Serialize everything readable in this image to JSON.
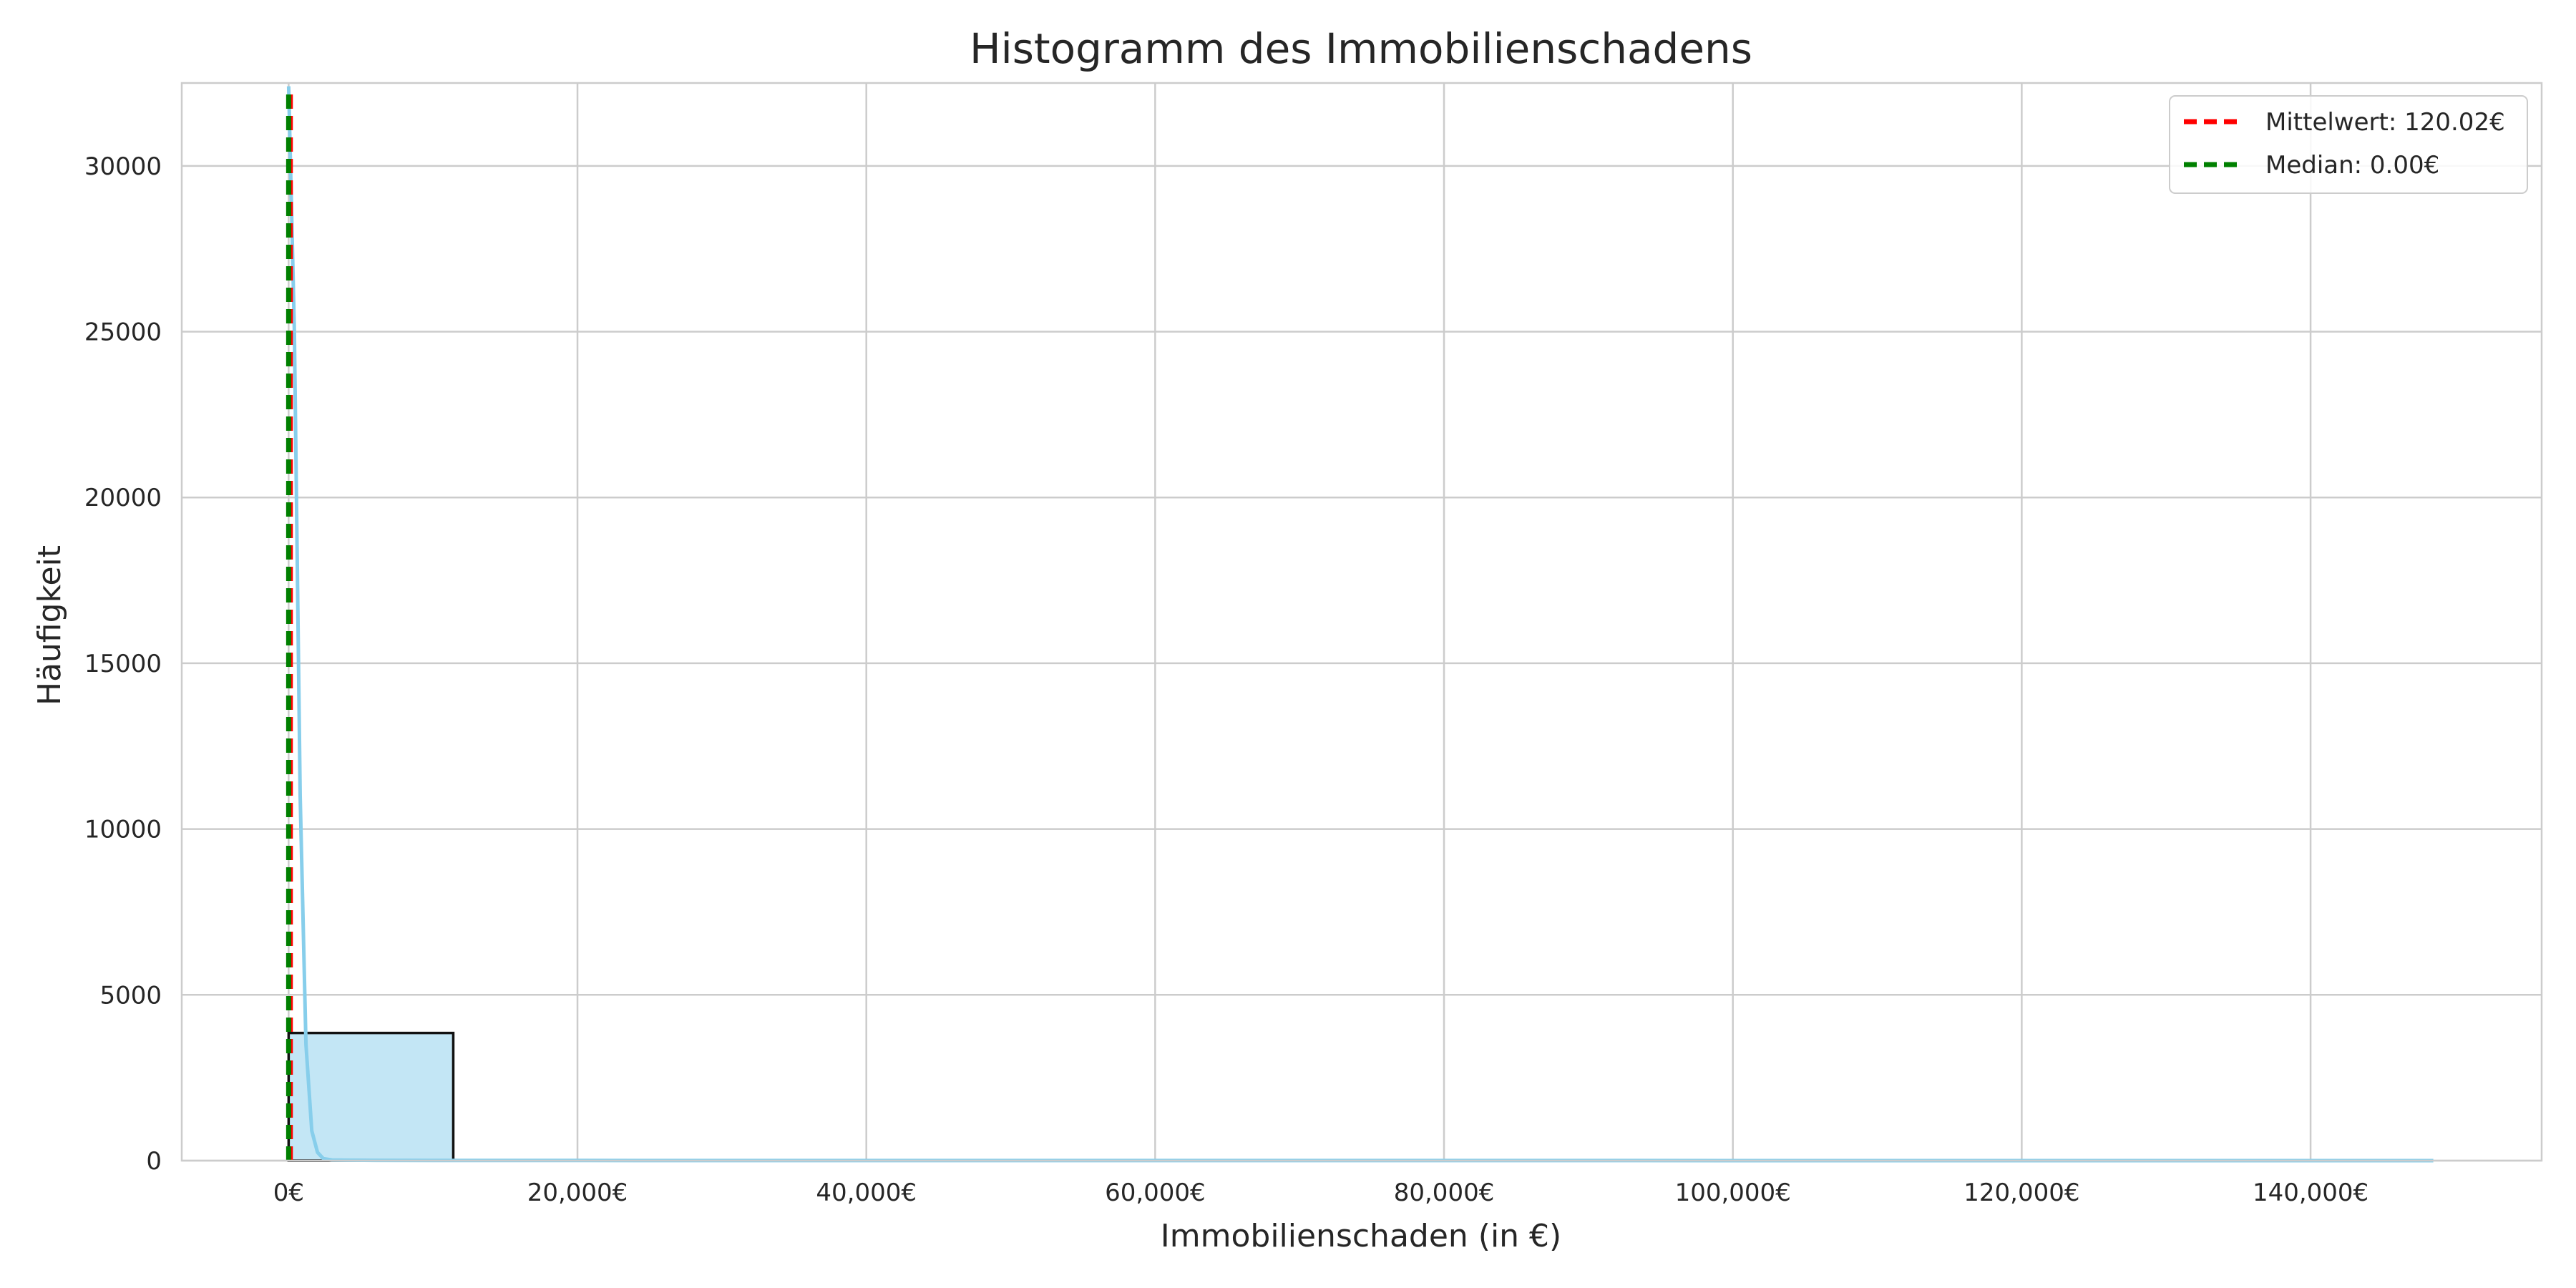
{
  "chart_data": {
    "type": "bar",
    "title": "Histogramm des Immobilienschadens",
    "xlabel": "Immobilienschaden (in €)",
    "ylabel": "Häufigkeit",
    "xlim": [
      -7400,
      156000
    ],
    "ylim": [
      0,
      32500
    ],
    "grid": true,
    "x_ticks": [
      0,
      20000,
      40000,
      60000,
      80000,
      100000,
      120000,
      140000
    ],
    "x_tick_labels": [
      "0€",
      "20,000€",
      "40,000€",
      "60,000€",
      "80,000€",
      "100,000€",
      "120,000€",
      "140,000€"
    ],
    "y_ticks": [
      0,
      5000,
      10000,
      15000,
      20000,
      25000,
      30000
    ],
    "y_tick_labels": [
      "0",
      "5000",
      "10000",
      "15000",
      "20000",
      "25000",
      "30000"
    ],
    "bars": [
      {
        "x0": 0,
        "x1": 11400,
        "value": 3850
      },
      {
        "x0": 11400,
        "x1": 22800,
        "value": 5
      },
      {
        "x0": 22800,
        "x1": 34200,
        "value": 2
      },
      {
        "x0": 34200,
        "x1": 45600,
        "value": 2
      },
      {
        "x0": 45600,
        "x1": 57000,
        "value": 1
      },
      {
        "x0": 57000,
        "x1": 68400,
        "value": 1
      },
      {
        "x0": 68400,
        "x1": 79800,
        "value": 0
      },
      {
        "x0": 79800,
        "x1": 91200,
        "value": 1
      },
      {
        "x0": 91200,
        "x1": 102600,
        "value": 0
      },
      {
        "x0": 102600,
        "x1": 114000,
        "value": 0
      },
      {
        "x0": 114000,
        "x1": 125400,
        "value": 1
      },
      {
        "x0": 125400,
        "x1": 136800,
        "value": 0
      },
      {
        "x0": 136800,
        "x1": 148200,
        "value": 1
      }
    ],
    "kde": {
      "x": [
        0,
        400,
        800,
        1200,
        1600,
        2000,
        2400,
        3000,
        4000,
        6000,
        10000,
        20000,
        40000,
        80000,
        120000,
        148500
      ],
      "y": [
        32400,
        25000,
        11000,
        3500,
        900,
        250,
        60,
        20,
        12,
        8,
        6,
        4,
        3,
        2,
        1,
        0
      ]
    },
    "lines": [
      {
        "name": "mean",
        "label": "Mittelwert: 120.02€",
        "value": 120.02,
        "color": "#ff0000"
      },
      {
        "name": "median",
        "label": "Median: 0.00€",
        "value": 0.0,
        "color": "#008000"
      }
    ],
    "legend_position": "top-right",
    "colors": {
      "bar_fill": "#87ceeb",
      "bar_edge": "#111111",
      "kde_line": "#87ceeb",
      "grid": "#cccccc",
      "frame": "#cccccc",
      "text": "#262626"
    }
  }
}
